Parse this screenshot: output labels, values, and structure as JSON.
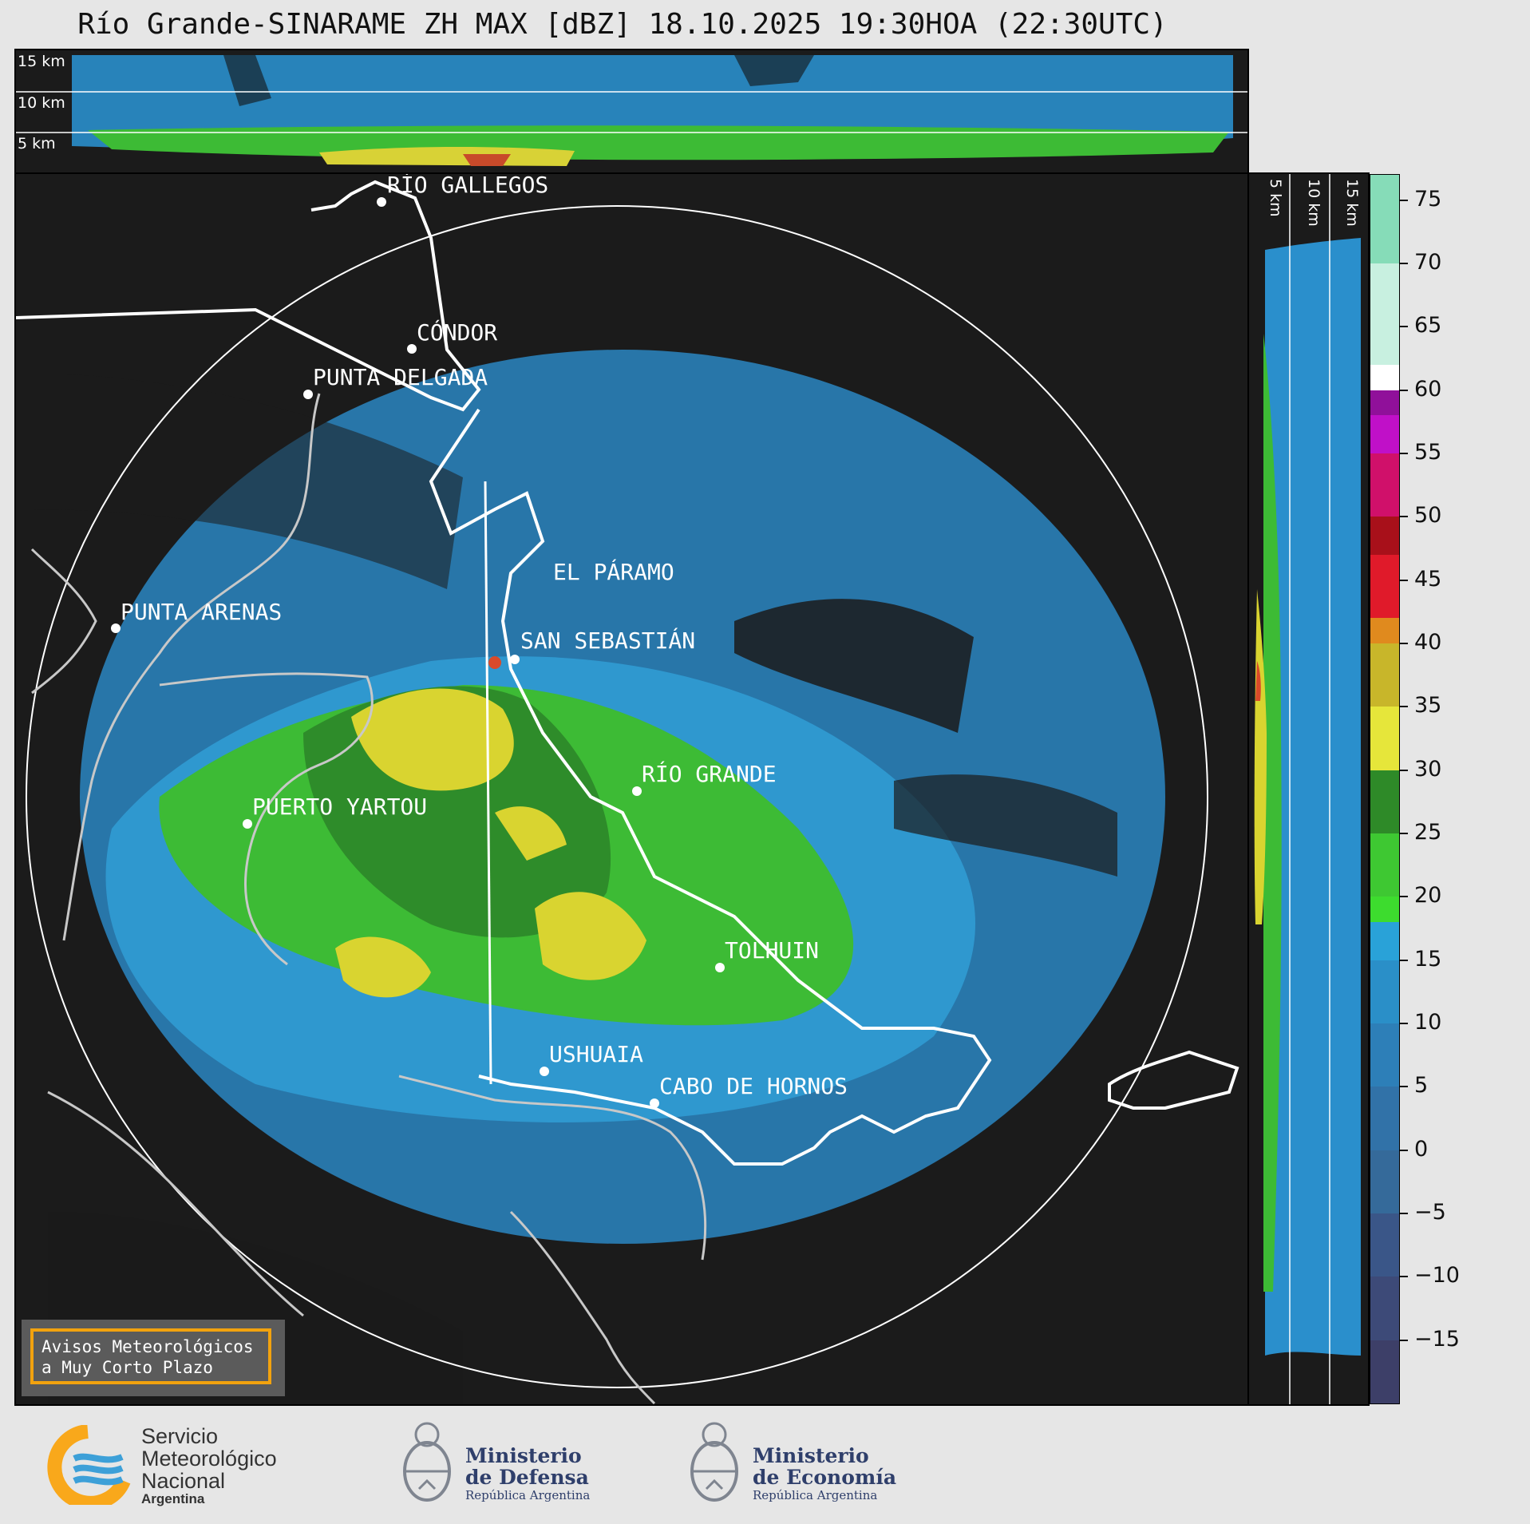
{
  "title": "Río Grande-SINARAME ZH MAX [dBZ] 18.10.2025 19:30HOA (22:30UTC)",
  "height_labels_top": [
    "15 km",
    "10 km",
    "5 km"
  ],
  "height_labels_side": [
    "5 km",
    "10 km",
    "15 km"
  ],
  "cities": {
    "rio_gallegos": "RÍO GALLEGOS",
    "condor": "CÓNDOR",
    "punta_delgada": "PUNTA DELGADA",
    "el_paramo": "EL PÁRAMO",
    "punta_arenas": "PUNTA ARENAS",
    "san_sebastian": "SAN SEBASTIÁN",
    "rio_grande": "RÍO GRANDE",
    "puerto_yartou": "PUERTO YARTOU",
    "tolhuin": "TOLHUIN",
    "ushuaia": "USHUAIA",
    "cabo_de_hornos": "CABO DE HORNOS"
  },
  "colorbar": {
    "labels": [
      "75",
      "70",
      "65",
      "60",
      "55",
      "50",
      "45",
      "40",
      "35",
      "30",
      "25",
      "20",
      "15",
      "10",
      "5",
      "0",
      "−5",
      "−10",
      "−15"
    ],
    "values": [
      75,
      70,
      65,
      60,
      55,
      50,
      45,
      40,
      35,
      30,
      25,
      20,
      15,
      10,
      5,
      0,
      -5,
      -10,
      -15
    ],
    "range": [
      -20,
      77
    ]
  },
  "warning": {
    "line1": "Avisos Meteorológicos",
    "line2": "a Muy Corto Plazo"
  },
  "logos": {
    "smn_line1": "Servicio",
    "smn_line2": "Meteorológico",
    "smn_line3": "Nacional",
    "smn_line4": "Argentina",
    "defensa_line1": "Ministerio",
    "defensa_line2": "de Defensa",
    "defensa_sub": "República Argentina",
    "economia_line1": "Ministerio",
    "economia_line2": "de Economía",
    "economia_sub": "República Argentina"
  },
  "colors": {
    "background": "#e6e6e6",
    "panel": "#1b1b1b",
    "accent_orange": "#f2a20e",
    "ministry_blue": "#2f3f6b",
    "smn_blue": "#3da0d8",
    "smn_orange": "#f9a81b"
  }
}
